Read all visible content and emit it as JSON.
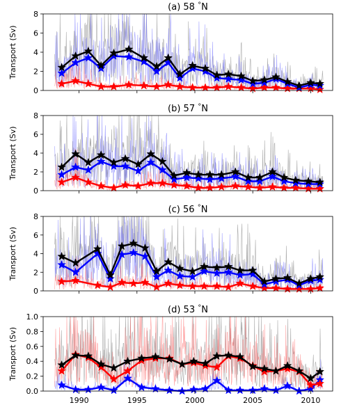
{
  "figure": {
    "xaxis": {
      "lim": [
        1986.9,
        2011.9
      ],
      "ticks": [
        1990,
        1995,
        2000,
        2005,
        2010
      ]
    },
    "colors": {
      "total": "#000000",
      "blue": "#0000ff",
      "red": "#ff0000",
      "noise_gray": "#999999",
      "noise_blue": "#6666ff",
      "noise_red": "#ff6666"
    }
  },
  "chart_data": [
    {
      "type": "line",
      "title": "(a) 58 $^\\circ$N",
      "title_parts": {
        "label": "(a) 58",
        "deg": "°",
        "lat": "N"
      },
      "ylabel": "Transport (Sv)",
      "ylim": [
        0,
        8
      ],
      "yticks": [
        0,
        2,
        4,
        6,
        8
      ],
      "x": [
        1988.5,
        1989.7,
        1990.8,
        1991.9,
        1993.0,
        1994.3,
        1995.6,
        1996.7,
        1997.7,
        1998.7,
        1999.8,
        2000.9,
        2001.9,
        2002.9,
        2004.0,
        2005.0,
        2006.0,
        2007.0,
        2008.0,
        2009.0,
        2010.0,
        2010.8
      ],
      "series": [
        {
          "key": "total",
          "values": [
            2.4,
            3.6,
            4.1,
            2.6,
            3.9,
            4.3,
            3.4,
            2.5,
            3.4,
            1.7,
            2.6,
            2.3,
            1.6,
            1.7,
            1.5,
            1.0,
            1.1,
            1.4,
            0.9,
            0.5,
            0.8,
            0.7
          ]
        },
        {
          "key": "blue",
          "values": [
            1.8,
            2.9,
            3.4,
            2.3,
            3.6,
            3.5,
            3.0,
            2.0,
            2.9,
            1.3,
            2.3,
            2.0,
            1.3,
            1.2,
            1.1,
            0.7,
            0.8,
            1.2,
            0.7,
            0.3,
            0.6,
            0.5
          ]
        },
        {
          "key": "red",
          "values": [
            0.7,
            1.0,
            0.7,
            0.4,
            0.4,
            0.6,
            0.5,
            0.4,
            0.6,
            0.4,
            0.3,
            0.3,
            0.3,
            0.4,
            0.3,
            0.2,
            0.3,
            0.3,
            0.2,
            0.2,
            0.2,
            0.1
          ]
        }
      ],
      "noise_peak": 8.0
    },
    {
      "type": "line",
      "title": "(b) 57 $^\\circ$N",
      "title_parts": {
        "label": "(b) 57",
        "deg": "°",
        "lat": "N"
      },
      "ylabel": "Transport (Sv)",
      "ylim": [
        0,
        8
      ],
      "yticks": [
        0,
        2,
        4,
        6,
        8
      ],
      "x": [
        1988.5,
        1989.7,
        1990.8,
        1991.9,
        1993.0,
        1994.0,
        1995.1,
        1996.2,
        1997.2,
        1998.2,
        1999.3,
        2000.3,
        2001.3,
        2002.3,
        2003.5,
        2004.6,
        2005.6,
        2006.7,
        2007.7,
        2008.7,
        2009.8,
        2010.8
      ],
      "series": [
        {
          "key": "total",
          "values": [
            2.5,
            3.9,
            3.0,
            3.8,
            3.0,
            3.4,
            2.8,
            3.9,
            3.1,
            1.6,
            1.9,
            1.7,
            1.7,
            1.7,
            2.0,
            1.4,
            1.4,
            2.0,
            1.4,
            1.1,
            1.0,
            0.9
          ]
        },
        {
          "key": "blue",
          "values": [
            1.7,
            2.5,
            2.2,
            3.1,
            2.6,
            2.6,
            2.1,
            3.0,
            2.2,
            1.2,
            1.4,
            1.3,
            1.2,
            1.3,
            1.5,
            1.0,
            1.0,
            1.5,
            1.0,
            0.8,
            0.7,
            0.7
          ]
        },
        {
          "key": "red",
          "values": [
            0.9,
            1.4,
            0.9,
            0.5,
            0.3,
            0.6,
            0.5,
            0.8,
            0.8,
            0.6,
            0.5,
            0.3,
            0.3,
            0.4,
            0.5,
            0.4,
            0.3,
            0.4,
            0.3,
            0.3,
            0.2,
            0.2
          ]
        }
      ],
      "noise_peak": 8.0
    },
    {
      "type": "line",
      "title": "(c) 56 $^\\circ$N",
      "title_parts": {
        "label": "(c) 56",
        "deg": "°",
        "lat": "N"
      },
      "ylabel": "Transport (Sv)",
      "ylim": [
        0,
        8
      ],
      "yticks": [
        0,
        2,
        4,
        6,
        8
      ],
      "x": [
        1988.5,
        1989.7,
        1991.6,
        1992.7,
        1993.7,
        1994.7,
        1995.7,
        1996.7,
        1997.7,
        1998.7,
        1999.8,
        2000.8,
        2001.9,
        2002.9,
        2003.9,
        2005.0,
        2006.0,
        2007.0,
        2008.0,
        2009.0,
        2010.0,
        2010.8
      ],
      "series": [
        {
          "key": "total",
          "values": [
            3.7,
            3.0,
            4.5,
            1.7,
            4.8,
            5.1,
            4.6,
            2.1,
            3.1,
            2.4,
            2.1,
            2.6,
            2.5,
            2.6,
            2.2,
            2.2,
            1.0,
            1.3,
            1.4,
            0.8,
            1.3,
            1.5
          ]
        },
        {
          "key": "blue",
          "values": [
            2.8,
            2.0,
            4.0,
            1.3,
            3.9,
            4.1,
            3.7,
            1.5,
            2.2,
            1.6,
            1.5,
            2.1,
            1.9,
            2.0,
            1.7,
            1.8,
            0.7,
            1.0,
            1.2,
            0.6,
            1.1,
            1.2
          ]
        },
        {
          "key": "red",
          "values": [
            1.0,
            1.1,
            0.6,
            0.4,
            0.9,
            0.8,
            0.9,
            0.4,
            0.8,
            0.6,
            0.5,
            0.5,
            0.5,
            0.4,
            0.8,
            0.5,
            0.3,
            0.3,
            0.2,
            0.2,
            0.2,
            0.3
          ]
        }
      ],
      "noise_peak": 8.0
    },
    {
      "type": "line",
      "title": "(d) 53 $^\\circ$N",
      "title_parts": {
        "label": "(d) 53",
        "deg": "°",
        "lat": "N"
      },
      "ylabel": "Transport (Sv)",
      "ylim": [
        0,
        1.0
      ],
      "yticks": [
        0.0,
        0.2,
        0.4,
        0.6,
        0.8,
        1.0
      ],
      "ytick_labels": [
        "0.0",
        "0.2",
        "0.4",
        "0.6",
        "0.8",
        "1.0"
      ],
      "x": [
        1988.5,
        1989.7,
        1990.8,
        1991.9,
        1993.0,
        1994.2,
        1995.4,
        1996.6,
        1997.8,
        1998.9,
        1999.9,
        2000.9,
        2001.9,
        2002.9,
        2003.9,
        2005.0,
        2006.0,
        2007.0,
        2008.0,
        2009.0,
        2010.0,
        2010.8
      ],
      "series": [
        {
          "key": "total",
          "values": [
            0.35,
            0.48,
            0.47,
            0.36,
            0.31,
            0.4,
            0.44,
            0.46,
            0.43,
            0.36,
            0.4,
            0.37,
            0.47,
            0.48,
            0.46,
            0.33,
            0.3,
            0.27,
            0.34,
            0.27,
            0.17,
            0.26
          ]
        },
        {
          "key": "red",
          "values": [
            0.27,
            0.49,
            0.45,
            0.32,
            0.16,
            0.27,
            0.41,
            0.44,
            0.44,
            0.36,
            0.38,
            0.34,
            0.32,
            0.47,
            0.44,
            0.34,
            0.26,
            0.27,
            0.3,
            0.26,
            0.08,
            0.1
          ]
        },
        {
          "key": "blue",
          "values": [
            0.08,
            0.02,
            0.02,
            0.05,
            0.01,
            0.17,
            0.05,
            0.03,
            0.01,
            0.0,
            0.02,
            0.03,
            0.14,
            0.01,
            0.01,
            0.01,
            0.03,
            0.01,
            0.07,
            0.0,
            0.03,
            0.15
          ]
        }
      ],
      "noise_peak": 1.0
    }
  ]
}
